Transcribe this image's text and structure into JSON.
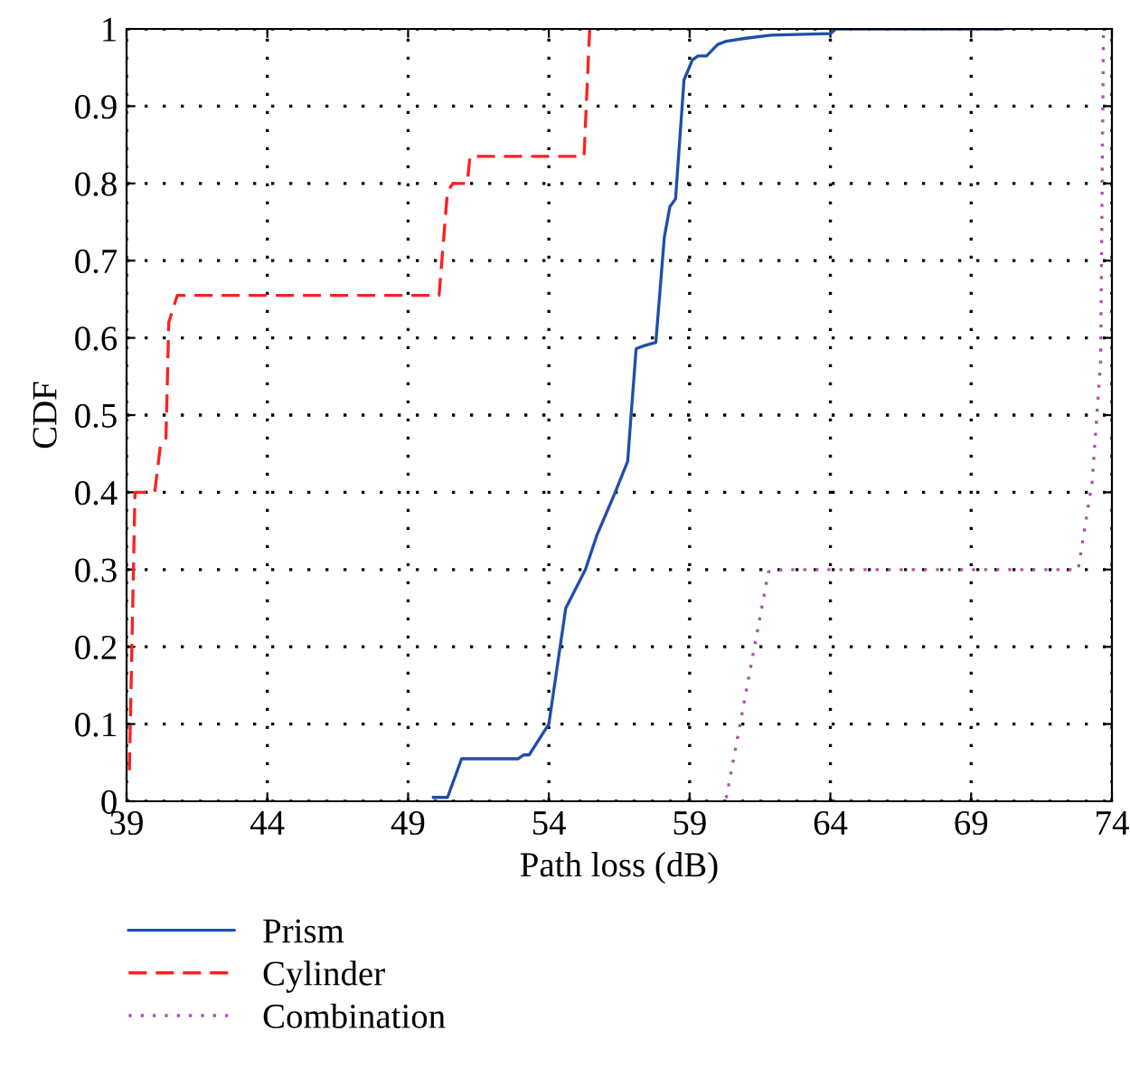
{
  "chart_data": {
    "type": "line",
    "xlabel": "Path loss (dB)",
    "ylabel": "CDF",
    "xlim": [
      39,
      74
    ],
    "xticks": [
      39,
      44,
      49,
      54,
      59,
      64,
      69,
      74
    ],
    "ylim": [
      0,
      1
    ],
    "yticks": [
      0,
      0.1,
      0.2,
      0.3,
      0.4,
      0.5,
      0.6,
      0.7,
      0.8,
      0.9,
      1
    ],
    "grid": true,
    "legend": "bottom",
    "series": [
      {
        "name": "Prism",
        "color": "#1f4fa8",
        "line_style": "solid",
        "x": [
          49.9,
          50.4,
          50.9,
          52.9,
          53.1,
          53.3,
          54.0,
          54.6,
          55.3,
          55.7,
          56.3,
          56.8,
          56.9,
          57.1,
          57.4,
          57.8,
          58.1,
          58.3,
          58.5,
          58.8,
          59.1,
          59.3,
          59.6,
          60.0,
          60.3,
          61.0,
          61.9,
          64.0,
          64.2,
          70.1
        ],
        "values": [
          0.005,
          0.005,
          0.055,
          0.055,
          0.06,
          0.06,
          0.1,
          0.25,
          0.3,
          0.344,
          0.395,
          0.44,
          0.49,
          0.586,
          0.59,
          0.594,
          0.73,
          0.77,
          0.78,
          0.934,
          0.96,
          0.965,
          0.965,
          0.98,
          0.984,
          0.988,
          0.992,
          0.994,
          1.0,
          1.0
        ]
      },
      {
        "name": "Cylinder",
        "color": "#ff2020",
        "line_style": "dashed",
        "x": [
          39.1,
          39.3,
          40.0,
          40.2,
          40.4,
          40.5,
          40.8,
          50.1,
          50.4,
          50.6,
          51.1,
          51.2,
          55.25,
          55.45
        ],
        "values": [
          0.04,
          0.4,
          0.4,
          0.46,
          0.47,
          0.62,
          0.655,
          0.655,
          0.79,
          0.8,
          0.8,
          0.835,
          0.835,
          1.0
        ]
      },
      {
        "name": "Combination",
        "color": "#b050b0",
        "line_style": "dotted",
        "x": [
          60.3,
          61.8,
          62.3,
          72.8,
          73.3,
          73.6,
          73.7
        ],
        "values": [
          0.004,
          0.297,
          0.3,
          0.3,
          0.414,
          0.57,
          1.0
        ]
      }
    ]
  }
}
